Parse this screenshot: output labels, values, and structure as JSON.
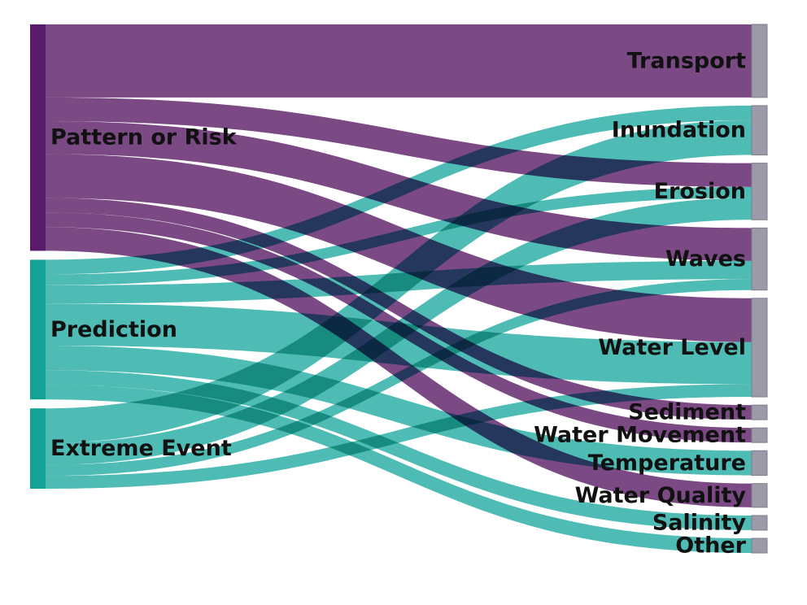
{
  "colors": {
    "source_purple": "#5a1a6b",
    "source_teal": "#13a396",
    "link_purple": "#7b4a85",
    "link_teal": "#45b8b0",
    "target_gray": "#9b9aa8"
  },
  "sources": [
    {
      "id": "pattern",
      "label": "Pattern or Risk",
      "color_key": "source_purple"
    },
    {
      "id": "prediction",
      "label": "Prediction",
      "color_key": "source_teal"
    },
    {
      "id": "extreme",
      "label": "Extreme Event",
      "color_key": "source_teal"
    }
  ],
  "targets": [
    {
      "id": "transport",
      "label": "Transport"
    },
    {
      "id": "inundation",
      "label": "Inundation"
    },
    {
      "id": "erosion",
      "label": "Erosion"
    },
    {
      "id": "waves",
      "label": "Waves"
    },
    {
      "id": "water_level",
      "label": "Water Level"
    },
    {
      "id": "sediment",
      "label": "Sediment"
    },
    {
      "id": "water_movement",
      "label": "Water Movement"
    },
    {
      "id": "temperature",
      "label": "Temperature"
    },
    {
      "id": "water_quality",
      "label": "Water Quality"
    },
    {
      "id": "salinity",
      "label": "Salinity"
    },
    {
      "id": "other",
      "label": "Other"
    }
  ],
  "flows": [
    {
      "source": "pattern",
      "target": "transport",
      "value": 80
    },
    {
      "source": "pattern",
      "target": "erosion",
      "value": 26
    },
    {
      "source": "pattern",
      "target": "waves",
      "value": 36
    },
    {
      "source": "pattern",
      "target": "water_level",
      "value": 48
    },
    {
      "source": "pattern",
      "target": "water_movement",
      "value": 16
    },
    {
      "source": "pattern",
      "target": "sediment",
      "value": 16
    },
    {
      "source": "pattern",
      "target": "water_quality",
      "value": 26
    },
    {
      "source": "prediction",
      "target": "inundation",
      "value": 16
    },
    {
      "source": "prediction",
      "target": "erosion",
      "value": 12
    },
    {
      "source": "prediction",
      "target": "waves",
      "value": 20
    },
    {
      "source": "prediction",
      "target": "water_level",
      "value": 46
    },
    {
      "source": "prediction",
      "target": "temperature",
      "value": 27
    },
    {
      "source": "prediction",
      "target": "salinity",
      "value": 16
    },
    {
      "source": "prediction",
      "target": "other",
      "value": 16
    },
    {
      "source": "extreme",
      "target": "inundation",
      "value": 38
    },
    {
      "source": "extreme",
      "target": "erosion",
      "value": 24
    },
    {
      "source": "extreme",
      "target": "waves",
      "value": 12
    },
    {
      "source": "extreme",
      "target": "water_level",
      "value": 14
    }
  ]
}
